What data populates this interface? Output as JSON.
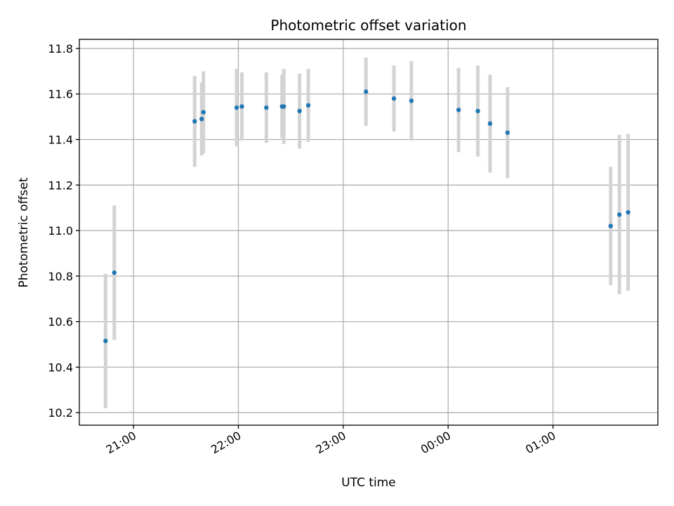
{
  "chart_data": {
    "type": "scatter",
    "title": "Photometric offset variation",
    "xlabel": "UTC time",
    "ylabel": "Photometric offset",
    "x_unit": "UTC (HH:MM)",
    "xlim": [
      "20:29",
      "02:00"
    ],
    "ylim": [
      10.145,
      11.84
    ],
    "x_ticks": [
      "21:00",
      "22:00",
      "23:00",
      "00:00",
      "01:00"
    ],
    "y_ticks": [
      "10.2",
      "10.4",
      "10.6",
      "10.8",
      "11.0",
      "11.2",
      "11.4",
      "11.6",
      "11.8"
    ],
    "grid": true,
    "marker_color": "#1f77b4",
    "errorbar_color": "#d3d3d3",
    "points": [
      {
        "x": "20:44",
        "y": 10.515,
        "yerr": 0.295
      },
      {
        "x": "20:49",
        "y": 10.815,
        "yerr": 0.295
      },
      {
        "x": "21:35",
        "y": 11.48,
        "yerr": 0.2
      },
      {
        "x": "21:39",
        "y": 11.49,
        "yerr": 0.16
      },
      {
        "x": "21:40",
        "y": 11.52,
        "yerr": 0.18
      },
      {
        "x": "21:59",
        "y": 11.54,
        "yerr": 0.17
      },
      {
        "x": "22:02",
        "y": 11.545,
        "yerr": 0.15
      },
      {
        "x": "22:16",
        "y": 11.54,
        "yerr": 0.155
      },
      {
        "x": "22:25",
        "y": 11.545,
        "yerr": 0.14
      },
      {
        "x": "22:26",
        "y": 11.545,
        "yerr": 0.165
      },
      {
        "x": "22:35",
        "y": 11.525,
        "yerr": 0.165
      },
      {
        "x": "22:40",
        "y": 11.55,
        "yerr": 0.16
      },
      {
        "x": "23:13",
        "y": 11.61,
        "yerr": 0.15
      },
      {
        "x": "23:29",
        "y": 11.58,
        "yerr": 0.145
      },
      {
        "x": "23:39",
        "y": 11.57,
        "yerr": 0.175
      },
      {
        "x": "00:06",
        "y": 11.53,
        "yerr": 0.185
      },
      {
        "x": "00:17",
        "y": 11.525,
        "yerr": 0.2
      },
      {
        "x": "00:24",
        "y": 11.47,
        "yerr": 0.215
      },
      {
        "x": "00:34",
        "y": 11.43,
        "yerr": 0.2
      },
      {
        "x": "01:33",
        "y": 11.02,
        "yerr": 0.26
      },
      {
        "x": "01:38",
        "y": 11.07,
        "yerr": 0.35
      },
      {
        "x": "01:43",
        "y": 11.08,
        "yerr": 0.345
      }
    ]
  }
}
